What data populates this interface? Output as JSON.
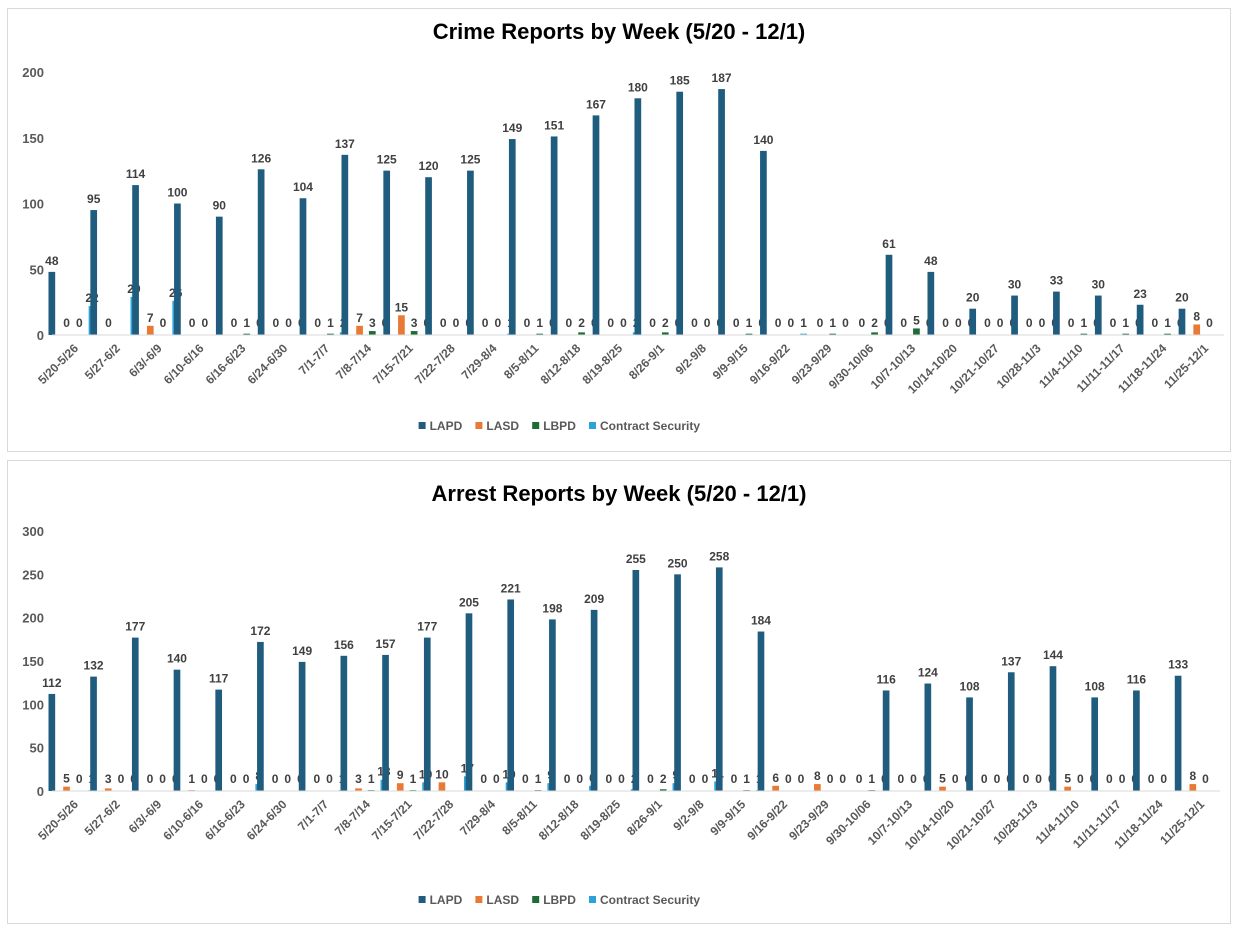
{
  "chart_data": [
    {
      "type": "bar",
      "title": "Crime Reports by Week (5/20 - 12/1)",
      "xlabel": "",
      "ylabel": "",
      "ylim": [
        0,
        200
      ],
      "yticks": [
        0,
        50,
        100,
        150,
        200
      ],
      "grid": false,
      "legend_position": "bottom",
      "categories": [
        "5/20-5/26",
        "5/27-6/2",
        "6/3/-6/9",
        "6/10-6/16",
        "6/16-6/23",
        "6/24-6/30",
        "7/1-7/7",
        "7/8-7/14",
        "7/15-7/21",
        "7/22-7/28",
        "7/29-8/4",
        "8/5-8/11",
        "8/12-8/18",
        "8/19-8/25",
        "8/26-9/1",
        "9/2-9/8",
        "9/9-9/15",
        "9/16-9/22",
        "9/23-9/29",
        "9/30-10/06",
        "10/7-10/13",
        "10/14-10/20",
        "10/21-10/27",
        "10/28-11/3",
        "11/4-11/10",
        "11/11-11/17",
        "11/18-11/24",
        "11/25-12/1"
      ],
      "series": [
        {
          "name": "LAPD",
          "color": "#1f5c7e",
          "values": [
            48,
            95,
            114,
            100,
            90,
            126,
            104,
            137,
            125,
            120,
            125,
            149,
            151,
            167,
            180,
            185,
            187,
            140,
            null,
            null,
            61,
            48,
            20,
            30,
            33,
            30,
            23,
            20
          ]
        },
        {
          "name": "LASD",
          "color": "#e87a35",
          "values": [
            0,
            0,
            7,
            0,
            0,
            0,
            0,
            7,
            15,
            0,
            0,
            0,
            0,
            0,
            0,
            0,
            0,
            0,
            0,
            0,
            0,
            0,
            0,
            0,
            0,
            0,
            0,
            8
          ]
        },
        {
          "name": "LBPD",
          "color": "#1f6b35",
          "values": [
            0,
            null,
            0,
            0,
            1,
            0,
            1,
            3,
            3,
            0,
            0,
            1,
            2,
            0,
            2,
            0,
            1,
            0,
            1,
            2,
            5,
            0,
            0,
            0,
            1,
            1,
            1,
            0
          ]
        },
        {
          "name": "Contract Security",
          "color": "#2aa3d8",
          "values": [
            22,
            29,
            26,
            null,
            0,
            0,
            2,
            0,
            0,
            0,
            1,
            0,
            0,
            2,
            0,
            0,
            0,
            1,
            0,
            0,
            0,
            0,
            0,
            0,
            0,
            0,
            0,
            null
          ]
        }
      ],
      "data_labels": [
        [
          "48",
          "95",
          "114",
          "100",
          "90",
          "126",
          "104",
          "137",
          "125",
          "120",
          "125",
          "149",
          "151",
          "167",
          "180",
          "185",
          "187",
          "140",
          "",
          "",
          "61",
          "48",
          "20",
          "30",
          "33",
          "30",
          "23",
          "20"
        ],
        [
          "0",
          "0",
          "7",
          "0",
          "0",
          "0",
          "0",
          "7",
          "15",
          "0",
          "0",
          "0",
          "0",
          "0",
          "0",
          "0",
          "0",
          "0",
          "0",
          "0",
          "0",
          "0",
          "0",
          "0",
          "0",
          "0",
          "0",
          "8"
        ],
        [
          "0",
          "",
          "0",
          "0",
          "1",
          "0",
          "1",
          "3",
          "3",
          "0",
          "0",
          "1",
          "2",
          "0",
          "2",
          "0",
          "1",
          "0",
          "1",
          "2",
          "5",
          "0",
          "0",
          "0",
          "1",
          "1",
          "1",
          "0"
        ],
        [
          "22",
          "29",
          "26",
          "",
          "0",
          "0",
          "2",
          "0",
          "0",
          "0",
          "1",
          "0",
          "0",
          "2",
          "0",
          "0",
          "0",
          "1",
          "0",
          "0",
          "0",
          "0",
          "0",
          "0",
          "0",
          "0",
          "0",
          ""
        ]
      ]
    },
    {
      "type": "bar",
      "title": "Arrest Reports by Week (5/20 - 12/1)",
      "xlabel": "",
      "ylabel": "",
      "ylim": [
        0,
        300
      ],
      "yticks": [
        0,
        50,
        100,
        150,
        200,
        250,
        300
      ],
      "grid": false,
      "legend_position": "bottom",
      "categories": [
        "5/20-5/26",
        "5/27-6/2",
        "6/3/-6/9",
        "6/10-6/16",
        "6/16-6/23",
        "6/24-6/30",
        "7/1-7/7",
        "7/8-7/14",
        "7/15-7/21",
        "7/22-7/28",
        "7/29-8/4",
        "8/5-8/11",
        "8/12-8/18",
        "8/19-8/25",
        "8/26-9/1",
        "9/2-9/8",
        "9/9-9/15",
        "9/16-9/22",
        "9/23-9/29",
        "9/30-10/06",
        "10/7-10/13",
        "10/14-10/20",
        "10/21-10/27",
        "10/28-11/3",
        "11/4-11/10",
        "11/11-11/17",
        "11/18-11/24",
        "11/25-12/1"
      ],
      "series": [
        {
          "name": "LAPD",
          "color": "#1f5c7e",
          "values": [
            112,
            132,
            177,
            140,
            117,
            172,
            149,
            156,
            157,
            177,
            205,
            221,
            198,
            209,
            255,
            250,
            258,
            184,
            null,
            null,
            116,
            124,
            108,
            137,
            144,
            108,
            116,
            133
          ]
        },
        {
          "name": "LASD",
          "color": "#e87a35",
          "values": [
            5,
            3,
            0,
            1,
            0,
            0,
            0,
            3,
            9,
            10,
            0,
            0,
            0,
            0,
            0,
            0,
            0,
            6,
            8,
            0,
            0,
            5,
            0,
            0,
            5,
            0,
            0,
            8
          ]
        },
        {
          "name": "LBPD",
          "color": "#1f6b35",
          "values": [
            0,
            0,
            0,
            0,
            0,
            0,
            0,
            1,
            1,
            null,
            0,
            1,
            0,
            0,
            2,
            0,
            1,
            0,
            0,
            1,
            0,
            0,
            0,
            0,
            0,
            0,
            0,
            0
          ]
        },
        {
          "name": "Contract Security",
          "color": "#2aa3d8",
          "values": [
            1,
            0,
            0,
            0,
            8,
            0,
            1,
            13,
            10,
            17,
            10,
            9,
            6,
            2,
            9,
            11,
            1,
            0,
            0,
            0,
            0,
            0,
            0,
            0,
            0,
            0,
            null,
            null
          ]
        }
      ],
      "data_labels": [
        [
          "112",
          "132",
          "177",
          "140",
          "117",
          "172",
          "149",
          "156",
          "157",
          "177",
          "205",
          "221",
          "198",
          "209",
          "255",
          "250",
          "258",
          "184",
          "",
          "",
          "116",
          "124",
          "108",
          "137",
          "144",
          "108",
          "116",
          "133"
        ],
        [
          "5",
          "3",
          "0",
          "1",
          "0",
          "0",
          "0",
          "3",
          "9",
          "10",
          "0",
          "0",
          "0",
          "0",
          "0",
          "0",
          "0",
          "6",
          "8",
          "0",
          "0",
          "5",
          "0",
          "0",
          "5",
          "0",
          "0",
          "8"
        ],
        [
          "0",
          "0",
          "0",
          "0",
          "0",
          "0",
          "0",
          "1",
          "1",
          "",
          "0",
          "1",
          "0",
          "0",
          "2",
          "0",
          "1",
          "0",
          "0",
          "1",
          "0",
          "0",
          "0",
          "0",
          "0",
          "0",
          "0",
          "0"
        ],
        [
          "1",
          "0",
          "0",
          "0",
          "8",
          "0",
          "1",
          "13",
          "10",
          "17",
          "10",
          "9",
          "6",
          "2",
          "9",
          "11",
          "1",
          "0",
          "0",
          "0",
          "0",
          "0",
          "0",
          "0",
          "0",
          "0",
          "",
          ""
        ]
      ]
    }
  ]
}
